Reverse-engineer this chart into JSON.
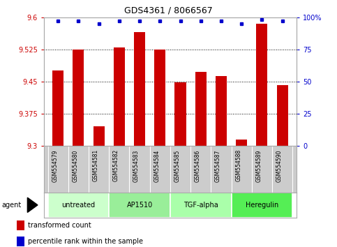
{
  "title": "GDS4361 / 8066567",
  "samples": [
    "GSM554579",
    "GSM554580",
    "GSM554581",
    "GSM554582",
    "GSM554583",
    "GSM554584",
    "GSM554585",
    "GSM554586",
    "GSM554587",
    "GSM554588",
    "GSM554589",
    "GSM554590"
  ],
  "red_values": [
    9.475,
    9.525,
    9.345,
    9.53,
    9.565,
    9.525,
    9.448,
    9.472,
    9.463,
    9.315,
    9.585,
    9.442
  ],
  "blue_values": [
    97,
    97,
    95,
    97,
    97,
    97,
    97,
    97,
    97,
    95,
    98,
    97
  ],
  "ylim_left": [
    9.3,
    9.6
  ],
  "ylim_right": [
    0,
    100
  ],
  "yticks_left": [
    9.3,
    9.375,
    9.45,
    9.525,
    9.6
  ],
  "ytick_labels_left": [
    "9.3",
    "9.375",
    "9.45",
    "9.525",
    "9.6"
  ],
  "yticks_right": [
    0,
    25,
    50,
    75,
    100
  ],
  "ytick_labels_right": [
    "0",
    "25",
    "50",
    "75",
    "100%"
  ],
  "groups": [
    {
      "label": "untreated",
      "start": 0,
      "end": 3,
      "color": "#ccffcc"
    },
    {
      "label": "AP1510",
      "start": 3,
      "end": 6,
      "color": "#99ee99"
    },
    {
      "label": "TGF-alpha",
      "start": 6,
      "end": 9,
      "color": "#aaffaa"
    },
    {
      "label": "Heregulin",
      "start": 9,
      "end": 12,
      "color": "#55ee55"
    }
  ],
  "bar_color": "#cc0000",
  "dot_color": "#0000cc",
  "bar_width": 0.55,
  "bg_color": "#ffffff",
  "sample_bg": "#cccccc",
  "legend_items": [
    {
      "color": "#cc0000",
      "label": "transformed count"
    },
    {
      "color": "#0000cc",
      "label": "percentile rank within the sample"
    }
  ],
  "agent_label": "agent"
}
